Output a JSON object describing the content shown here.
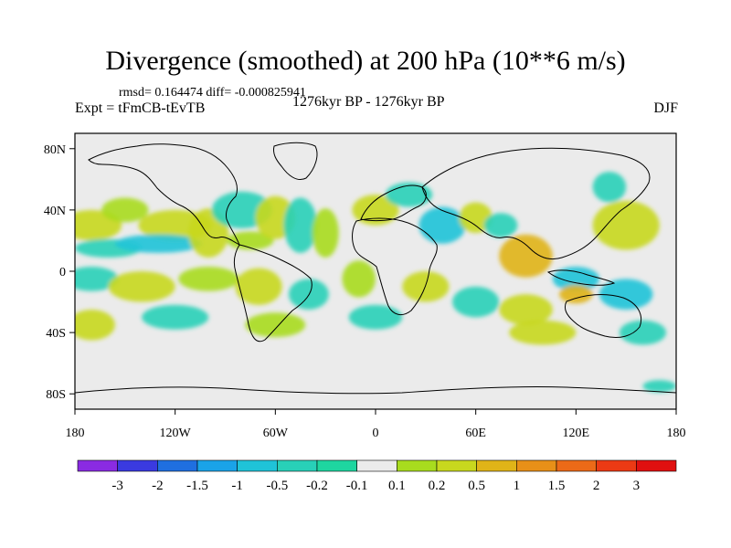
{
  "chart_data": {
    "type": "heatmap",
    "title": "Divergence (smoothed) at 200 hPa (10**6 m/s)",
    "stats": "rmsd= 0.164474  diff= -0.000825941",
    "left_label": "Expt = tFmCB-tEvTB",
    "center_label": "1276kyr BP - 1276kyr BP",
    "right_label": "DJF",
    "x_ticks": [
      "180",
      "120W",
      "60W",
      "0",
      "60E",
      "120E",
      "180"
    ],
    "x_tick_values": [
      -180,
      -120,
      -60,
      0,
      60,
      120,
      180
    ],
    "y_ticks": [
      "80N",
      "40N",
      "0",
      "40S",
      "80S"
    ],
    "y_tick_values": [
      80,
      40,
      0,
      -40,
      -80
    ],
    "xlim": [
      -180,
      180
    ],
    "ylim": [
      -90,
      90
    ],
    "colorbar": {
      "labels": [
        "-3",
        "-2",
        "-1.5",
        "-1",
        "-0.5",
        "-0.2",
        "-0.1",
        "0.1",
        "0.2",
        "0.5",
        "1",
        "1.5",
        "2",
        "3"
      ],
      "colors": [
        "#8a2be2",
        "#3a3ae0",
        "#1f6fe0",
        "#1aa3e8",
        "#1fc3d8",
        "#28d0b8",
        "#1ed6a0",
        "#ebebeb",
        "#a8dc1e",
        "#c8d81e",
        "#e0b418",
        "#e89018",
        "#ec6a18",
        "#ec3a14",
        "#e01010"
      ]
    },
    "field_blobs": [
      {
        "lon": -170,
        "lat": 30,
        "rlon": 18,
        "rlat": 10,
        "value": 0.3
      },
      {
        "lon": -160,
        "lat": 15,
        "rlon": 20,
        "rlat": 6,
        "value": -0.3
      },
      {
        "lon": -150,
        "lat": 40,
        "rlon": 14,
        "rlat": 8,
        "value": 0.2
      },
      {
        "lon": -120,
        "lat": 30,
        "rlon": 22,
        "rlat": 10,
        "value": 0.3
      },
      {
        "lon": -130,
        "lat": 18,
        "rlon": 26,
        "rlat": 6,
        "value": -0.5
      },
      {
        "lon": -100,
        "lat": 25,
        "rlon": 12,
        "rlat": 16,
        "value": 0.3
      },
      {
        "lon": -80,
        "lat": 40,
        "rlon": 18,
        "rlat": 12,
        "value": -0.3
      },
      {
        "lon": -75,
        "lat": 20,
        "rlon": 14,
        "rlat": 6,
        "value": 0.2
      },
      {
        "lon": -60,
        "lat": 35,
        "rlon": 12,
        "rlat": 14,
        "value": 0.5
      },
      {
        "lon": -45,
        "lat": 30,
        "rlon": 10,
        "rlat": 18,
        "value": -0.3
      },
      {
        "lon": -30,
        "lat": 25,
        "rlon": 8,
        "rlat": 16,
        "value": 0.2
      },
      {
        "lon": 0,
        "lat": 40,
        "rlon": 14,
        "rlat": 10,
        "value": 0.5
      },
      {
        "lon": 20,
        "lat": 50,
        "rlon": 14,
        "rlat": 8,
        "value": -0.3
      },
      {
        "lon": 40,
        "lat": 30,
        "rlon": 14,
        "rlat": 12,
        "value": -0.5
      },
      {
        "lon": 60,
        "lat": 35,
        "rlon": 10,
        "rlat": 10,
        "value": 0.3
      },
      {
        "lon": 75,
        "lat": 30,
        "rlon": 10,
        "rlat": 8,
        "value": -0.3
      },
      {
        "lon": 90,
        "lat": 10,
        "rlon": 16,
        "rlat": 14,
        "value": 1.0
      },
      {
        "lon": 120,
        "lat": -5,
        "rlon": 14,
        "rlat": 8,
        "value": -0.5
      },
      {
        "lon": 150,
        "lat": 30,
        "rlon": 20,
        "rlat": 16,
        "value": 0.5
      },
      {
        "lon": 140,
        "lat": 55,
        "rlon": 10,
        "rlat": 10,
        "value": -0.3
      },
      {
        "lon": -170,
        "lat": -5,
        "rlon": 16,
        "rlat": 8,
        "value": -0.2
      },
      {
        "lon": -140,
        "lat": -10,
        "rlon": 20,
        "rlat": 10,
        "value": 0.3
      },
      {
        "lon": -100,
        "lat": -5,
        "rlon": 18,
        "rlat": 8,
        "value": 0.2
      },
      {
        "lon": -70,
        "lat": -10,
        "rlon": 14,
        "rlat": 12,
        "value": 0.3
      },
      {
        "lon": -40,
        "lat": -15,
        "rlon": 12,
        "rlat": 10,
        "value": -0.3
      },
      {
        "lon": -10,
        "lat": -5,
        "rlon": 10,
        "rlat": 12,
        "value": 0.2
      },
      {
        "lon": 30,
        "lat": -10,
        "rlon": 14,
        "rlat": 10,
        "value": 0.5
      },
      {
        "lon": 60,
        "lat": -20,
        "rlon": 14,
        "rlat": 10,
        "value": -0.3
      },
      {
        "lon": 90,
        "lat": -25,
        "rlon": 16,
        "rlat": 10,
        "value": 0.3
      },
      {
        "lon": 150,
        "lat": -15,
        "rlon": 16,
        "rlat": 10,
        "value": -0.5
      },
      {
        "lon": -170,
        "lat": -35,
        "rlon": 14,
        "rlat": 10,
        "value": 0.3
      },
      {
        "lon": -120,
        "lat": -30,
        "rlon": 20,
        "rlat": 8,
        "value": -0.3
      },
      {
        "lon": -60,
        "lat": -35,
        "rlon": 18,
        "rlat": 8,
        "value": 0.2
      },
      {
        "lon": 0,
        "lat": -30,
        "rlon": 16,
        "rlat": 8,
        "value": -0.3
      },
      {
        "lon": 100,
        "lat": -40,
        "rlon": 20,
        "rlat": 8,
        "value": 0.3
      },
      {
        "lon": 160,
        "lat": -40,
        "rlon": 14,
        "rlat": 8,
        "value": -0.3
      },
      {
        "lon": 170,
        "lat": -75,
        "rlon": 10,
        "rlat": 4,
        "value": -0.3
      },
      {
        "lon": 120,
        "lat": -15,
        "rlon": 10,
        "rlat": 6,
        "value": 1.0
      }
    ]
  }
}
